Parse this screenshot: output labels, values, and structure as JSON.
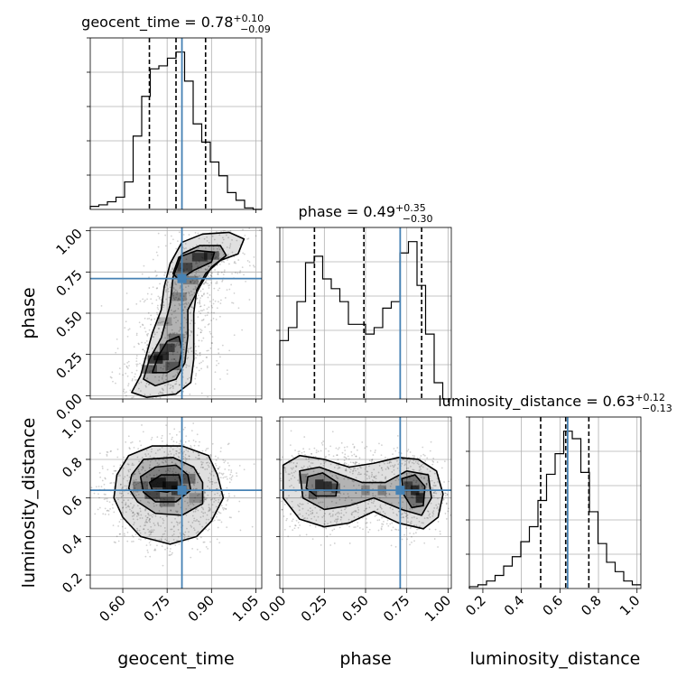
{
  "chart_data": {
    "type": "corner",
    "params": [
      "geocent_time",
      "phase",
      "luminosity_distance"
    ],
    "axis_labels": [
      "geocent_time",
      "phase",
      "luminosity_distance"
    ],
    "truths": [
      0.8,
      0.71,
      0.64
    ],
    "truth_color": "#4682b4",
    "quantiles": [
      0.16,
      0.5,
      0.84
    ],
    "ranges": [
      [
        0.49,
        1.07
      ],
      [
        -0.02,
        1.02
      ],
      [
        0.13,
        1.02
      ]
    ],
    "ticks": [
      {
        "values": [
          0.6,
          0.75,
          0.9,
          1.05
        ],
        "labels": [
          "0.60",
          "0.75",
          "0.90",
          "1.05"
        ]
      },
      {
        "values": [
          0.0,
          0.25,
          0.5,
          0.75,
          1.0
        ],
        "labels": [
          "0.00",
          "0.25",
          "0.50",
          "0.75",
          "1.00"
        ]
      },
      {
        "values": [
          0.2,
          0.4,
          0.6,
          0.8,
          1.0
        ],
        "labels": [
          "0.2",
          "0.4",
          "0.6",
          "0.8",
          "1.0"
        ]
      }
    ],
    "titles": [
      {
        "name": "geocent_time",
        "median": "0.78",
        "plus": "+0.10",
        "minus": "−0.09"
      },
      {
        "name": "phase",
        "median": "0.49",
        "plus": "+0.35",
        "minus": "−0.30"
      },
      {
        "name": "luminosity_distance",
        "median": "0.63",
        "plus": "+0.12",
        "minus": "−0.13"
      }
    ],
    "histograms": [
      {
        "param": "geocent_time",
        "bin_edges": [
          0.49,
          0.519,
          0.548,
          0.577,
          0.606,
          0.635,
          0.664,
          0.693,
          0.722,
          0.751,
          0.78,
          0.809,
          0.838,
          0.867,
          0.896,
          0.925,
          0.954,
          0.983,
          1.012,
          1.041,
          1.07
        ],
        "counts": [
          2,
          3,
          5,
          8,
          18,
          48,
          74,
          92,
          94,
          99,
          103,
          84,
          56,
          44,
          31,
          22,
          11,
          6,
          1,
          0
        ],
        "quantile_values": [
          0.69,
          0.78,
          0.88
        ]
      },
      {
        "param": "phase",
        "bin_edges": [
          -0.02,
          0.032,
          0.084,
          0.136,
          0.188,
          0.24,
          0.292,
          0.344,
          0.396,
          0.448,
          0.5,
          0.552,
          0.604,
          0.656,
          0.708,
          0.76,
          0.812,
          0.864,
          0.916,
          0.968,
          1.02
        ],
        "counts": [
          36,
          44,
          60,
          84,
          88,
          74,
          68,
          60,
          46,
          46,
          40,
          44,
          56,
          60,
          90,
          97,
          70,
          40,
          10,
          0
        ],
        "quantile_values": [
          0.19,
          0.49,
          0.84
        ]
      },
      {
        "param": "luminosity_distance",
        "bin_edges": [
          0.13,
          0.1745,
          0.219,
          0.2635,
          0.308,
          0.3525,
          0.397,
          0.4415,
          0.486,
          0.5305,
          0.575,
          0.6195,
          0.664,
          0.7085,
          0.753,
          0.7975,
          0.842,
          0.8865,
          0.931,
          0.9755,
          1.02
        ],
        "counts": [
          1,
          2,
          4,
          7,
          12,
          17,
          25,
          33,
          47,
          61,
          72,
          84,
          80,
          62,
          41,
          24,
          14,
          9,
          4,
          2
        ],
        "quantile_values": [
          0.5,
          0.63,
          0.75
        ]
      }
    ],
    "pairs": [
      {
        "x": "geocent_time",
        "y": "phase",
        "levels": [
          [
            [
              0.63,
              0.02
            ],
            [
              0.66,
              0.12
            ],
            [
              0.68,
              0.25
            ],
            [
              0.7,
              0.38
            ],
            [
              0.73,
              0.52
            ],
            [
              0.74,
              0.66
            ],
            [
              0.76,
              0.8
            ],
            [
              0.8,
              0.93
            ],
            [
              0.87,
              0.98
            ],
            [
              0.96,
              0.99
            ],
            [
              1.01,
              0.95
            ],
            [
              0.99,
              0.86
            ],
            [
              0.93,
              0.82
            ],
            [
              0.88,
              0.74
            ],
            [
              0.85,
              0.64
            ],
            [
              0.84,
              0.5
            ],
            [
              0.84,
              0.36
            ],
            [
              0.84,
              0.22
            ],
            [
              0.83,
              0.08
            ],
            [
              0.78,
              0.01
            ],
            [
              0.68,
              -0.01
            ]
          ],
          [
            [
              0.67,
              0.1
            ],
            [
              0.69,
              0.22
            ],
            [
              0.73,
              0.35
            ],
            [
              0.76,
              0.55
            ],
            [
              0.77,
              0.72
            ],
            [
              0.8,
              0.86
            ],
            [
              0.86,
              0.91
            ],
            [
              0.93,
              0.91
            ],
            [
              0.95,
              0.85
            ],
            [
              0.9,
              0.78
            ],
            [
              0.86,
              0.66
            ],
            [
              0.82,
              0.52
            ],
            [
              0.82,
              0.36
            ],
            [
              0.81,
              0.2
            ],
            [
              0.78,
              0.1
            ],
            [
              0.71,
              0.06
            ]
          ],
          [
            [
              0.7,
              0.14
            ],
            [
              0.72,
              0.24
            ],
            [
              0.75,
              0.33
            ],
            [
              0.79,
              0.36
            ],
            [
              0.8,
              0.28
            ],
            [
              0.79,
              0.18
            ],
            [
              0.75,
              0.14
            ]
          ],
          [
            [
              0.77,
              0.74
            ],
            [
              0.79,
              0.84
            ],
            [
              0.85,
              0.88
            ],
            [
              0.91,
              0.87
            ],
            [
              0.9,
              0.81
            ],
            [
              0.84,
              0.76
            ],
            [
              0.79,
              0.7
            ]
          ]
        ],
        "cells": [
          [
            0.71,
            0.22,
            0.9
          ],
          [
            0.73,
            0.24,
            0.85
          ],
          [
            0.75,
            0.29,
            0.7
          ],
          [
            0.78,
            0.35,
            0.5
          ],
          [
            0.79,
            0.6,
            0.35
          ],
          [
            0.81,
            0.78,
            0.55
          ],
          [
            0.86,
            0.84,
            0.7
          ],
          [
            0.9,
            0.85,
            0.6
          ],
          [
            0.69,
            0.16,
            0.6
          ],
          [
            0.77,
            0.18,
            0.45
          ],
          [
            0.74,
            0.45,
            0.25
          ],
          [
            0.83,
            0.7,
            0.4
          ]
        ]
      },
      {
        "x": "geocent_time",
        "y": "luminosity_distance",
        "levels": [
          [
            [
              0.58,
              0.72
            ],
            [
              0.62,
              0.82
            ],
            [
              0.7,
              0.87
            ],
            [
              0.8,
              0.87
            ],
            [
              0.89,
              0.82
            ],
            [
              0.92,
              0.72
            ],
            [
              0.94,
              0.6
            ],
            [
              0.9,
              0.48
            ],
            [
              0.85,
              0.4
            ],
            [
              0.76,
              0.36
            ],
            [
              0.66,
              0.4
            ],
            [
              0.6,
              0.5
            ],
            [
              0.57,
              0.6
            ]
          ],
          [
            [
              0.63,
              0.72
            ],
            [
              0.67,
              0.8
            ],
            [
              0.77,
              0.81
            ],
            [
              0.84,
              0.76
            ],
            [
              0.87,
              0.68
            ],
            [
              0.87,
              0.57
            ],
            [
              0.8,
              0.51
            ],
            [
              0.71,
              0.52
            ],
            [
              0.65,
              0.58
            ],
            [
              0.62,
              0.65
            ]
          ],
          [
            [
              0.66,
              0.71
            ],
            [
              0.71,
              0.76
            ],
            [
              0.78,
              0.77
            ],
            [
              0.82,
              0.72
            ],
            [
              0.83,
              0.64
            ],
            [
              0.78,
              0.58
            ],
            [
              0.71,
              0.58
            ],
            [
              0.67,
              0.63
            ]
          ],
          [
            [
              0.69,
              0.68
            ],
            [
              0.73,
              0.72
            ],
            [
              0.79,
              0.72
            ],
            [
              0.8,
              0.66
            ],
            [
              0.75,
              0.63
            ],
            [
              0.7,
              0.64
            ]
          ]
        ],
        "cells": [
          [
            0.72,
            0.68,
            0.9
          ],
          [
            0.76,
            0.66,
            0.85
          ],
          [
            0.79,
            0.64,
            0.7
          ],
          [
            0.7,
            0.62,
            0.6
          ],
          [
            0.82,
            0.7,
            0.5
          ],
          [
            0.66,
            0.66,
            0.4
          ],
          [
            0.75,
            0.58,
            0.45
          ],
          [
            0.85,
            0.6,
            0.3
          ]
        ]
      },
      {
        "x": "phase",
        "y": "luminosity_distance",
        "levels": [
          [
            [
              0.0,
              0.77
            ],
            [
              0.1,
              0.82
            ],
            [
              0.25,
              0.8
            ],
            [
              0.4,
              0.76
            ],
            [
              0.55,
              0.78
            ],
            [
              0.7,
              0.81
            ],
            [
              0.82,
              0.8
            ],
            [
              0.93,
              0.74
            ],
            [
              0.97,
              0.62
            ],
            [
              0.94,
              0.5
            ],
            [
              0.85,
              0.44
            ],
            [
              0.7,
              0.47
            ],
            [
              0.55,
              0.53
            ],
            [
              0.4,
              0.47
            ],
            [
              0.25,
              0.45
            ],
            [
              0.1,
              0.49
            ],
            [
              0.0,
              0.6
            ]
          ],
          [
            [
              0.1,
              0.74
            ],
            [
              0.22,
              0.76
            ],
            [
              0.35,
              0.72
            ],
            [
              0.48,
              0.68
            ],
            [
              0.62,
              0.68
            ],
            [
              0.75,
              0.74
            ],
            [
              0.88,
              0.72
            ],
            [
              0.9,
              0.6
            ],
            [
              0.84,
              0.51
            ],
            [
              0.72,
              0.54
            ],
            [
              0.55,
              0.6
            ],
            [
              0.4,
              0.56
            ],
            [
              0.25,
              0.54
            ],
            [
              0.12,
              0.6
            ]
          ],
          [
            [
              0.15,
              0.71
            ],
            [
              0.24,
              0.73
            ],
            [
              0.33,
              0.68
            ],
            [
              0.32,
              0.61
            ],
            [
              0.2,
              0.61
            ],
            [
              0.14,
              0.65
            ]
          ],
          [
            [
              0.72,
              0.7
            ],
            [
              0.8,
              0.72
            ],
            [
              0.86,
              0.66
            ],
            [
              0.85,
              0.56
            ],
            [
              0.78,
              0.55
            ],
            [
              0.73,
              0.62
            ]
          ]
        ],
        "cells": [
          [
            0.22,
            0.67,
            0.9
          ],
          [
            0.27,
            0.66,
            0.85
          ],
          [
            0.18,
            0.62,
            0.6
          ],
          [
            0.32,
            0.65,
            0.6
          ],
          [
            0.8,
            0.64,
            0.85
          ],
          [
            0.83,
            0.6,
            0.8
          ],
          [
            0.76,
            0.66,
            0.6
          ],
          [
            0.5,
            0.64,
            0.35
          ],
          [
            0.6,
            0.64,
            0.4
          ],
          [
            0.12,
            0.7,
            0.4
          ]
        ]
      }
    ]
  }
}
